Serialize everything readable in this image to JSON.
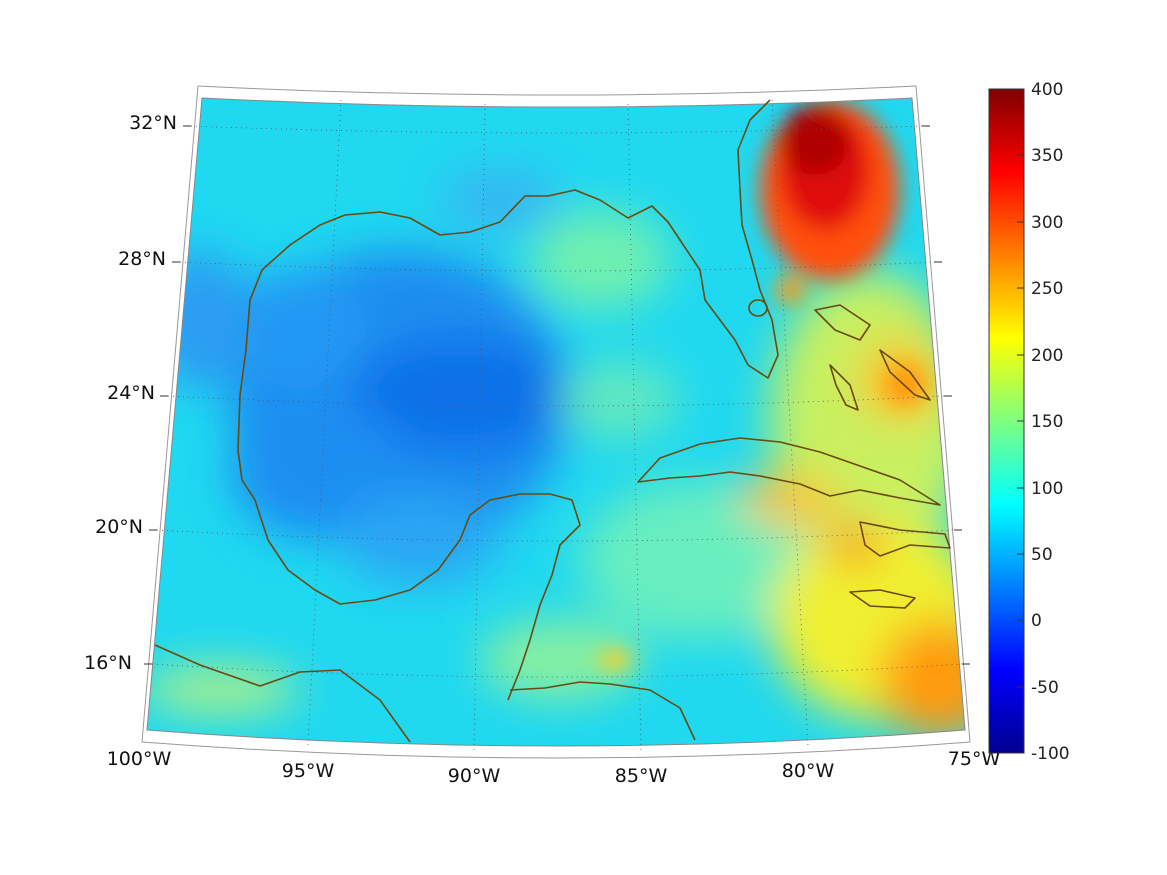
{
  "map": {
    "lat_labels": [
      "32°N",
      "28°N",
      "24°N",
      "20°N",
      "16°N"
    ],
    "lon_labels": [
      "100°W",
      "95°W",
      "90°W",
      "85°W",
      "80°W",
      "75°W"
    ],
    "region": "Gulf of Mexico and Caribbean",
    "coastline_color": "#6b4a10",
    "grid_style": "dotted"
  },
  "colorbar": {
    "labels": [
      "400",
      "350",
      "300",
      "250",
      "200",
      "150",
      "100",
      "50",
      "0",
      "-50",
      "-100"
    ],
    "min": -100,
    "max": 400,
    "colormap": "jet"
  }
}
